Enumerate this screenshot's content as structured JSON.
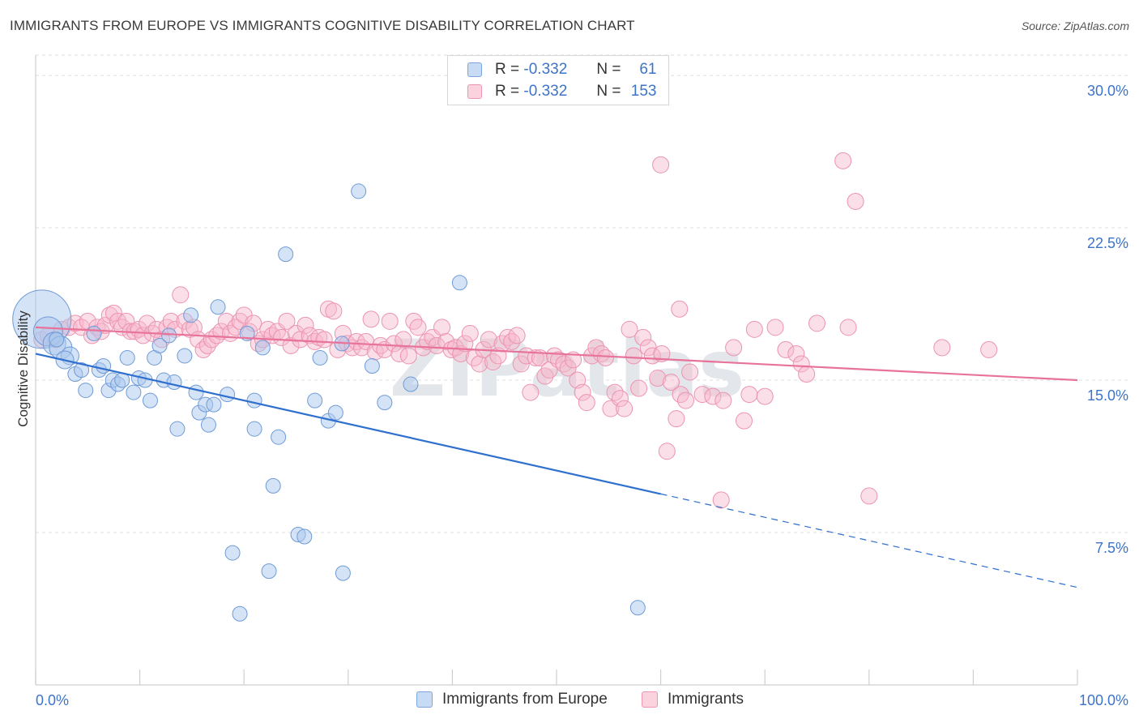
{
  "title": "IMMIGRANTS FROM EUROPE VS IMMIGRANTS COGNITIVE DISABILITY CORRELATION CHART",
  "source": "Source: ZipAtlas.com",
  "watermark": "ZIPatlas",
  "legend_top": [
    {
      "r_label": "R =",
      "r_value": "-0.332",
      "n_label": "N =",
      "n_value": "61",
      "color": "#a9c8ee"
    },
    {
      "r_label": "R =",
      "r_value": "-0.332",
      "n_label": "N =",
      "n_value": "153",
      "color": "#f6b8cb"
    }
  ],
  "bottom_legend": [
    {
      "label": "Immigrants from Europe",
      "color": "#a9c8ee"
    },
    {
      "label": "Immigrants",
      "color": "#f6b8cb"
    }
  ],
  "chart_data": {
    "type": "scatter",
    "title": "IMMIGRANTS FROM EUROPE VS IMMIGRANTS COGNITIVE DISABILITY CORRELATION CHART",
    "xlabel": "",
    "ylabel": "Cognitive Disability",
    "xlim": [
      0,
      100
    ],
    "ylim": [
      0,
      31
    ],
    "x_tick_labels": [
      "0.0%",
      "100.0%"
    ],
    "y_ticks": [
      7.5,
      15.0,
      22.5,
      30.0
    ],
    "y_tick_labels": [
      "7.5%",
      "15.0%",
      "22.5%",
      "30.0%"
    ],
    "grid": true,
    "legend_position": "top-center",
    "series": [
      {
        "name": "Immigrants from Europe",
        "color": "#a9c8ee",
        "line_color": "#2f6fce",
        "trend": {
          "x0": 0,
          "y0": 16.3,
          "x1": 60,
          "y1": 9.4,
          "dash_to_x": 100,
          "dash_to_y": 4.8
        },
        "points": [
          [
            0.6,
            18.0,
            36
          ],
          [
            1.2,
            17.4,
            18
          ],
          [
            1.8,
            16.8,
            14
          ],
          [
            2.4,
            16.6,
            14
          ],
          [
            3.3,
            16.2,
            11
          ],
          [
            2.8,
            16.0,
            11
          ],
          [
            3.8,
            15.3,
            9
          ],
          [
            4.4,
            15.5,
            9
          ],
          [
            4.8,
            14.5,
            9
          ],
          [
            6.1,
            15.5,
            9
          ],
          [
            6.5,
            15.7,
            9
          ],
          [
            7.0,
            14.5,
            9
          ],
          [
            7.4,
            15.0,
            9
          ],
          [
            7.9,
            14.8,
            9
          ],
          [
            8.3,
            15.0,
            9
          ],
          [
            8.8,
            16.1,
            9
          ],
          [
            9.4,
            14.4,
            9
          ],
          [
            9.9,
            15.1,
            9
          ],
          [
            10.5,
            15.0,
            9
          ],
          [
            11.0,
            14.0,
            9
          ],
          [
            11.4,
            16.1,
            9
          ],
          [
            11.9,
            16.7,
            9
          ],
          [
            12.3,
            15.0,
            9
          ],
          [
            12.8,
            17.2,
            9
          ],
          [
            13.3,
            14.9,
            9
          ],
          [
            13.6,
            12.6,
            9
          ],
          [
            14.3,
            16.2,
            9
          ],
          [
            14.9,
            18.2,
            9
          ],
          [
            15.4,
            14.4,
            9
          ],
          [
            15.7,
            13.4,
            9
          ],
          [
            16.3,
            13.8,
            9
          ],
          [
            16.6,
            12.8,
            9
          ],
          [
            17.1,
            13.8,
            9
          ],
          [
            17.5,
            18.6,
            9
          ],
          [
            18.4,
            14.3,
            9
          ],
          [
            18.9,
            6.5,
            9
          ],
          [
            19.6,
            3.5,
            9
          ],
          [
            20.3,
            17.3,
            9
          ],
          [
            21.0,
            14.0,
            9
          ],
          [
            21.0,
            12.6,
            9
          ],
          [
            21.8,
            16.6,
            9
          ],
          [
            22.4,
            5.6,
            9
          ],
          [
            22.8,
            9.8,
            9
          ],
          [
            23.3,
            12.2,
            9
          ],
          [
            24.0,
            21.2,
            9
          ],
          [
            25.2,
            7.4,
            9
          ],
          [
            25.8,
            7.3,
            9
          ],
          [
            26.8,
            14.0,
            9
          ],
          [
            27.3,
            16.1,
            9
          ],
          [
            28.1,
            13.0,
            9
          ],
          [
            28.8,
            13.4,
            9
          ],
          [
            29.4,
            16.8,
            9
          ],
          [
            29.5,
            5.5,
            9
          ],
          [
            31.0,
            24.3,
            9
          ],
          [
            32.3,
            15.7,
            9
          ],
          [
            33.5,
            13.9,
            9
          ],
          [
            36.0,
            14.8,
            9
          ],
          [
            40.7,
            19.8,
            9
          ],
          [
            57.8,
            3.8,
            9
          ],
          [
            2.0,
            17.0,
            9
          ],
          [
            5.6,
            17.3,
            9
          ]
        ]
      },
      {
        "name": "Immigrants",
        "color": "#f6b8cb",
        "line_color": "#e8739a",
        "trend": {
          "x0": 0,
          "y0": 17.6,
          "x1": 100,
          "y1": 15.0
        },
        "points": [
          [
            0.6,
            17.0,
            10
          ],
          [
            1.2,
            17.2,
            10
          ],
          [
            1.9,
            17.0,
            10
          ],
          [
            2.5,
            17.5,
            10
          ],
          [
            3.2,
            17.6,
            10
          ],
          [
            3.8,
            17.8,
            10
          ],
          [
            4.4,
            17.6,
            10
          ],
          [
            5.0,
            17.9,
            10
          ],
          [
            5.4,
            17.2,
            10
          ],
          [
            5.9,
            17.6,
            10
          ],
          [
            6.3,
            17.4,
            10
          ],
          [
            6.7,
            17.7,
            10
          ],
          [
            7.1,
            18.2,
            10
          ],
          [
            7.5,
            18.3,
            10
          ],
          [
            7.9,
            17.9,
            10
          ],
          [
            8.3,
            17.6,
            10
          ],
          [
            8.7,
            17.9,
            10
          ],
          [
            9.1,
            17.4,
            10
          ],
          [
            9.5,
            17.4,
            10
          ],
          [
            9.9,
            17.5,
            10
          ],
          [
            10.3,
            17.2,
            10
          ],
          [
            10.7,
            17.8,
            10
          ],
          [
            11.2,
            17.3,
            10
          ],
          [
            11.6,
            17.5,
            10
          ],
          [
            12.1,
            17.0,
            10
          ],
          [
            12.6,
            17.6,
            10
          ],
          [
            13.0,
            17.9,
            10
          ],
          [
            13.4,
            17.5,
            10
          ],
          [
            13.9,
            19.2,
            10
          ],
          [
            14.3,
            17.9,
            10
          ],
          [
            14.8,
            17.5,
            10
          ],
          [
            15.2,
            17.6,
            10
          ],
          [
            15.6,
            17.0,
            10
          ],
          [
            16.1,
            16.5,
            10
          ],
          [
            16.5,
            16.7,
            10
          ],
          [
            16.9,
            17.0,
            10
          ],
          [
            17.4,
            17.2,
            10
          ],
          [
            17.8,
            17.4,
            10
          ],
          [
            18.3,
            17.9,
            10
          ],
          [
            18.7,
            17.3,
            10
          ],
          [
            19.2,
            17.6,
            10
          ],
          [
            19.6,
            17.9,
            10
          ],
          [
            20.0,
            18.2,
            10
          ],
          [
            20.5,
            17.4,
            10
          ],
          [
            20.9,
            17.8,
            10
          ],
          [
            21.4,
            16.8,
            10
          ],
          [
            21.8,
            17.0,
            10
          ],
          [
            22.3,
            17.5,
            10
          ],
          [
            22.7,
            17.2,
            10
          ],
          [
            23.2,
            17.4,
            10
          ],
          [
            23.6,
            17.1,
            10
          ],
          [
            24.1,
            17.9,
            10
          ],
          [
            24.5,
            16.7,
            10
          ],
          [
            25.0,
            17.3,
            10
          ],
          [
            25.4,
            17.0,
            10
          ],
          [
            25.9,
            17.7,
            10
          ],
          [
            26.3,
            17.2,
            10
          ],
          [
            26.8,
            16.9,
            10
          ],
          [
            27.2,
            17.1,
            10
          ],
          [
            27.7,
            17.0,
            10
          ],
          [
            28.1,
            18.5,
            10
          ],
          [
            28.6,
            18.4,
            10
          ],
          [
            29.0,
            16.5,
            10
          ],
          [
            29.5,
            17.3,
            10
          ],
          [
            29.9,
            16.8,
            10
          ],
          [
            30.4,
            16.6,
            10
          ],
          [
            30.8,
            16.9,
            10
          ],
          [
            31.3,
            16.6,
            10
          ],
          [
            31.7,
            16.9,
            10
          ],
          [
            32.2,
            18.0,
            10
          ],
          [
            32.6,
            16.4,
            10
          ],
          [
            33.1,
            16.7,
            10
          ],
          [
            33.5,
            16.5,
            10
          ],
          [
            34.0,
            17.9,
            10
          ],
          [
            34.4,
            16.8,
            10
          ],
          [
            34.9,
            16.3,
            10
          ],
          [
            35.3,
            17.0,
            10
          ],
          [
            35.8,
            16.2,
            10
          ],
          [
            36.3,
            17.9,
            10
          ],
          [
            36.7,
            17.6,
            10
          ],
          [
            37.2,
            16.6,
            10
          ],
          [
            37.6,
            16.9,
            10
          ],
          [
            38.1,
            17.1,
            10
          ],
          [
            38.5,
            16.7,
            10
          ],
          [
            39.0,
            17.6,
            10
          ],
          [
            39.4,
            16.9,
            10
          ],
          [
            39.9,
            16.5,
            10
          ],
          [
            40.3,
            16.6,
            10
          ],
          [
            40.8,
            16.3,
            10
          ],
          [
            41.2,
            16.8,
            10
          ],
          [
            41.7,
            17.3,
            10
          ],
          [
            42.1,
            16.1,
            10
          ],
          [
            42.6,
            15.8,
            10
          ],
          [
            43.0,
            16.5,
            10
          ],
          [
            43.5,
            17.0,
            10
          ],
          [
            43.9,
            15.9,
            10
          ],
          [
            44.4,
            16.2,
            10
          ],
          [
            44.8,
            16.8,
            10
          ],
          [
            45.3,
            17.1,
            10
          ],
          [
            45.7,
            16.9,
            10
          ],
          [
            46.2,
            17.2,
            10
          ],
          [
            46.6,
            15.8,
            10
          ],
          [
            47.1,
            16.2,
            10
          ],
          [
            47.5,
            14.4,
            10
          ],
          [
            48.0,
            16.1,
            10
          ],
          [
            48.4,
            16.1,
            10
          ],
          [
            48.9,
            15.2,
            10
          ],
          [
            49.3,
            15.5,
            10
          ],
          [
            49.8,
            16.2,
            10
          ],
          [
            50.2,
            16.0,
            10
          ],
          [
            50.7,
            15.8,
            10
          ],
          [
            51.1,
            15.6,
            10
          ],
          [
            51.6,
            16.0,
            10
          ],
          [
            52.0,
            15.0,
            10
          ],
          [
            52.5,
            14.4,
            10
          ],
          [
            52.9,
            13.9,
            10
          ],
          [
            53.4,
            16.2,
            10
          ],
          [
            53.8,
            16.6,
            10
          ],
          [
            54.3,
            16.3,
            10
          ],
          [
            54.7,
            16.1,
            10
          ],
          [
            55.2,
            13.6,
            10
          ],
          [
            55.6,
            14.4,
            10
          ],
          [
            56.1,
            14.1,
            10
          ],
          [
            56.5,
            13.6,
            10
          ],
          [
            57.0,
            17.5,
            10
          ],
          [
            57.4,
            16.2,
            10
          ],
          [
            57.9,
            14.6,
            10
          ],
          [
            58.3,
            17.1,
            10
          ],
          [
            58.8,
            16.6,
            10
          ],
          [
            59.2,
            16.2,
            10
          ],
          [
            59.7,
            15.1,
            10
          ],
          [
            60.1,
            16.3,
            10
          ],
          [
            60.6,
            11.5,
            10
          ],
          [
            61.0,
            14.9,
            10
          ],
          [
            61.5,
            13.1,
            10
          ],
          [
            61.9,
            14.3,
            10
          ],
          [
            62.4,
            14.0,
            10
          ],
          [
            62.8,
            15.4,
            10
          ],
          [
            64.0,
            14.3,
            10
          ],
          [
            65.0,
            14.2,
            10
          ],
          [
            66.0,
            14.0,
            10
          ],
          [
            67.0,
            16.6,
            10
          ],
          [
            68.0,
            13.0,
            10
          ],
          [
            68.5,
            14.3,
            10
          ],
          [
            69.0,
            17.5,
            10
          ],
          [
            70.0,
            14.2,
            10
          ],
          [
            71.0,
            17.6,
            10
          ],
          [
            72.0,
            16.5,
            10
          ],
          [
            73.0,
            16.3,
            10
          ],
          [
            73.5,
            15.8,
            10
          ],
          [
            74.0,
            15.3,
            10
          ],
          [
            75.0,
            17.8,
            10
          ],
          [
            78.0,
            17.6,
            10
          ],
          [
            60.0,
            25.6,
            10
          ],
          [
            77.5,
            25.8,
            10
          ],
          [
            78.7,
            23.8,
            10
          ],
          [
            65.8,
            9.1,
            10
          ],
          [
            80.0,
            9.3,
            10
          ],
          [
            61.8,
            18.5,
            10
          ],
          [
            87.0,
            16.6,
            10
          ],
          [
            91.5,
            16.5,
            10
          ]
        ]
      }
    ]
  }
}
